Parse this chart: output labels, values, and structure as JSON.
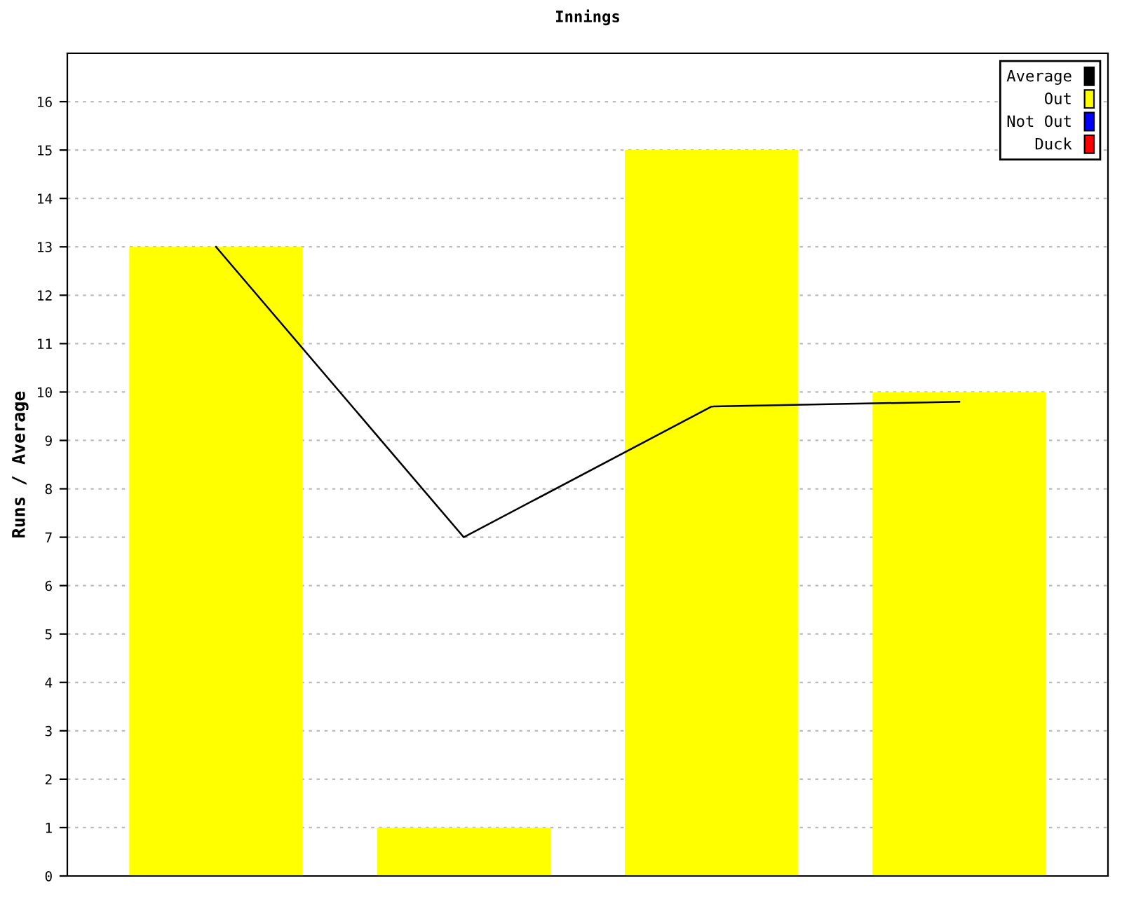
{
  "chart_data": {
    "type": "bar",
    "title": "Innings",
    "ylabel": "Runs / Average",
    "categories": [
      null,
      null,
      null,
      null
    ],
    "series": [
      {
        "name": "Average",
        "type": "line",
        "color": "#000000",
        "values": [
          13,
          7,
          9.7,
          9.8
        ]
      },
      {
        "name": "Out",
        "color": "#ffff00",
        "values": [
          13,
          1,
          15,
          10
        ]
      },
      {
        "name": "Not Out",
        "color": "#0000ff",
        "values": [
          null,
          null,
          null,
          null
        ]
      },
      {
        "name": "Duck",
        "color": "#ff0000",
        "values": [
          null,
          null,
          null,
          null
        ]
      }
    ],
    "ylim": [
      0,
      17
    ],
    "yticks": [
      0,
      1,
      2,
      3,
      4,
      5,
      6,
      7,
      8,
      9,
      10,
      11,
      12,
      13,
      14,
      15,
      16
    ],
    "grid": "y",
    "legend": "top right"
  }
}
